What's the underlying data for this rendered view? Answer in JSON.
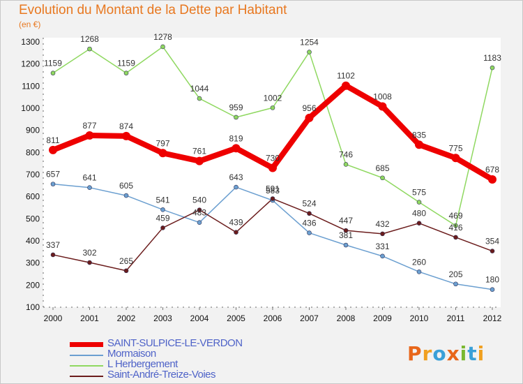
{
  "title": "Evolution du Montant de la Dette par Habitant",
  "unit_label": "(en €)",
  "logo_letters": [
    {
      "ch": "P",
      "color": "#e8661a"
    },
    {
      "ch": "r",
      "color": "#f0a020"
    },
    {
      "ch": "o",
      "color": "#3aa0d8"
    },
    {
      "ch": "x",
      "color": "#e8661a"
    },
    {
      "ch": "i",
      "color": "#7ab830"
    },
    {
      "ch": "t",
      "color": "#3aa0d8"
    },
    {
      "ch": "i",
      "color": "#f0a020"
    }
  ],
  "chart_data": {
    "type": "line",
    "title": "Evolution du Montant de la Dette par Habitant",
    "subtitle": "(en €)",
    "x": [
      "2000",
      "2001",
      "2002",
      "2003",
      "2004",
      "2005",
      "2006",
      "2007",
      "2008",
      "2009",
      "2010",
      "2011",
      "2012"
    ],
    "ylim": [
      100,
      1300
    ],
    "yticks": [
      100,
      200,
      300,
      400,
      500,
      600,
      700,
      800,
      900,
      1000,
      1100,
      1200,
      1300
    ],
    "grid": false,
    "legend_position": "bottom-left",
    "series": [
      {
        "name": "SAINT-SULPICE-LE-VERDON",
        "color": "#ee0000",
        "emphasis": true,
        "values": [
          811,
          877,
          874,
          797,
          761,
          819,
          730,
          956,
          1102,
          1008,
          835,
          775,
          678
        ]
      },
      {
        "name": "Mormaison",
        "color": "#6b9fd0",
        "emphasis": false,
        "values": [
          657,
          641,
          605,
          541,
          483,
          643,
          583,
          436,
          381,
          331,
          260,
          205,
          180
        ]
      },
      {
        "name": "L  Herbergement",
        "color": "#8fd860",
        "emphasis": false,
        "values": [
          1159,
          1268,
          1159,
          1278,
          1044,
          959,
          1002,
          1254,
          746,
          685,
          575,
          469,
          1183
        ]
      },
      {
        "name": "Saint-André-Treize-Voies",
        "color": "#6b1c1c",
        "emphasis": false,
        "values": [
          337,
          302,
          265,
          459,
          540,
          439,
          591,
          524,
          447,
          432,
          480,
          416,
          354
        ]
      }
    ]
  }
}
